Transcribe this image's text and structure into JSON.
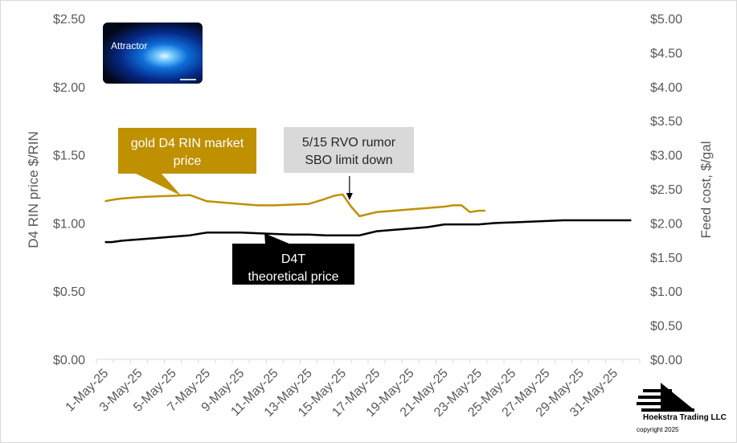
{
  "chart_data": {
    "type": "line",
    "title": "",
    "x": [
      "1-May-25",
      "2-May-25",
      "3-May-25",
      "4-May-25",
      "5-May-25",
      "6-May-25",
      "7-May-25",
      "8-May-25",
      "9-May-25",
      "10-May-25",
      "11-May-25",
      "12-May-25",
      "13-May-25",
      "14-May-25",
      "15-May-25",
      "16-May-25",
      "17-May-25",
      "18-May-25",
      "19-May-25",
      "20-May-25",
      "21-May-25",
      "22-May-25",
      "23-May-25",
      "24-May-25",
      "25-May-25",
      "26-May-25",
      "27-May-25",
      "28-May-25",
      "29-May-25",
      "30-May-25",
      "31-May-25",
      "1-Jun-25"
    ],
    "x_tick_labels": [
      "1-May-25",
      "3-May-25",
      "5-May-25",
      "7-May-25",
      "9-May-25",
      "11-May-25",
      "13-May-25",
      "15-May-25",
      "17-May-25",
      "19-May-25",
      "21-May-25",
      "23-May-25",
      "25-May-25",
      "27-May-25",
      "29-May-25",
      "31-May-25"
    ],
    "ylabel": "D4 RIN price $/RIN",
    "ylim": [
      0,
      2.5
    ],
    "y_ticks": [
      "$0.00",
      "$0.50",
      "$1.00",
      "$1.50",
      "$2.00",
      "$2.50"
    ],
    "y2label": "Feed cost, $/gal",
    "y2lim": [
      0,
      5
    ],
    "y2_ticks": [
      "$0.00",
      "$0.50",
      "$1.00",
      "$1.50",
      "$2.00",
      "$2.50",
      "$3.00",
      "$3.50",
      "$4.00",
      "$4.50",
      "$5.00"
    ],
    "grid": false,
    "legend": "none",
    "series": [
      {
        "key": "gold",
        "axis": "left",
        "color": "#bf9000",
        "x": [
          0,
          0.4,
          1,
          2,
          3,
          4,
          5,
          6,
          7,
          8,
          9,
          10,
          11,
          12,
          12.8,
          13.5,
          14,
          14.5,
          15,
          16,
          17,
          18,
          19,
          20,
          20.5,
          21,
          21.5,
          22,
          22.4
        ],
        "y": [
          1.16,
          1.17,
          1.18,
          1.19,
          1.195,
          1.2,
          1.205,
          1.16,
          1.15,
          1.14,
          1.13,
          1.13,
          1.135,
          1.14,
          1.17,
          1.2,
          1.21,
          1.12,
          1.05,
          1.08,
          1.09,
          1.1,
          1.11,
          1.12,
          1.13,
          1.13,
          1.08,
          1.09,
          1.09
        ]
      },
      {
        "key": "d4t",
        "axis": "left",
        "color": "#000000",
        "x": [
          0,
          0.4,
          1,
          2,
          3,
          4,
          5,
          6,
          7,
          8,
          9,
          10,
          11,
          12,
          13,
          14,
          15,
          16,
          17,
          18,
          19,
          20,
          21,
          22,
          23,
          24,
          25,
          26,
          27,
          28,
          29,
          30,
          31
        ],
        "y": [
          0.86,
          0.86,
          0.87,
          0.88,
          0.89,
          0.9,
          0.91,
          0.93,
          0.93,
          0.93,
          0.925,
          0.92,
          0.915,
          0.915,
          0.91,
          0.91,
          0.91,
          0.94,
          0.95,
          0.96,
          0.97,
          0.99,
          0.99,
          0.99,
          1.0,
          1.005,
          1.01,
          1.015,
          1.02,
          1.02,
          1.02,
          1.02,
          1.02
        ]
      }
    ],
    "annotations": {
      "gold": {
        "text": "gold D4 RIN market price",
        "lines": [
          "gold D4 RIN market",
          "price"
        ],
        "bg": "#bf9000",
        "fg": "#ffffff"
      },
      "rumor": {
        "text": "5/15 RVO rumor SBO limit down",
        "lines": [
          "5/15 RVO rumor",
          "SBO limit down"
        ],
        "bg": "#d9d9d9",
        "fg": "#262626"
      },
      "d4t": {
        "text": "D4T theoretical price",
        "lines": [
          "D4T",
          "theoretical price"
        ],
        "bg": "#000000",
        "fg": "#ffffff"
      }
    }
  },
  "logo": {
    "text": "Attractor"
  },
  "company": {
    "name": "Hoekstra Trading LLC",
    "copyright": "copyright  2025"
  }
}
